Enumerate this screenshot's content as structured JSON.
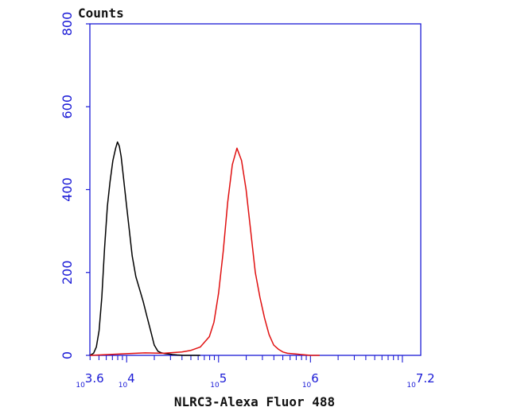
{
  "chart_data": {
    "type": "line",
    "title": "",
    "xlabel": "NLRC3-Alexa Fluor 488",
    "ylabel": "Counts",
    "x_scale": "log10",
    "xlim": [
      3.6,
      7.2
    ],
    "ylim": [
      0,
      800
    ],
    "x_tick_labels": [
      {
        "base": "10",
        "exp": "3.6",
        "value": 3.6
      },
      {
        "base": "10",
        "exp": "4",
        "value": 4
      },
      {
        "base": "10",
        "exp": "5",
        "value": 5
      },
      {
        "base": "10",
        "exp": "6",
        "value": 6
      },
      {
        "base": "10",
        "exp": "7.2",
        "value": 7.2
      }
    ],
    "y_ticks": [
      0,
      200,
      400,
      600,
      800
    ],
    "y_tick_labels": [
      "0",
      "200",
      "400",
      "600",
      "800"
    ],
    "grid": false,
    "legend": false,
    "colors": {
      "axis": "#1a1ad6",
      "label": "#111111"
    },
    "series": [
      {
        "color": "#000000",
        "x": [
          3.6,
          3.64,
          3.67,
          3.7,
          3.73,
          3.76,
          3.79,
          3.82,
          3.85,
          3.88,
          3.9,
          3.92,
          3.94,
          3.96,
          3.98,
          4.0,
          4.03,
          4.06,
          4.1,
          4.14,
          4.18,
          4.22,
          4.26,
          4.3,
          4.34,
          4.38,
          4.42,
          4.46,
          4.5,
          4.55,
          4.62,
          4.7,
          4.8
        ],
        "y": [
          0,
          5,
          20,
          60,
          140,
          260,
          360,
          420,
          470,
          500,
          515,
          505,
          480,
          440,
          400,
          360,
          300,
          240,
          190,
          160,
          130,
          95,
          60,
          25,
          10,
          6,
          4,
          3,
          2,
          1,
          0,
          0,
          0
        ]
      },
      {
        "color": "#e01010",
        "x": [
          3.6,
          3.8,
          4.0,
          4.2,
          4.4,
          4.6,
          4.7,
          4.8,
          4.9,
          4.95,
          5.0,
          5.05,
          5.1,
          5.15,
          5.2,
          5.25,
          5.3,
          5.35,
          5.4,
          5.45,
          5.5,
          5.55,
          5.6,
          5.65,
          5.7,
          5.75,
          5.8,
          5.85,
          5.9,
          5.95,
          6.0,
          6.1
        ],
        "y": [
          0,
          2,
          4,
          6,
          5,
          8,
          12,
          20,
          45,
          80,
          150,
          250,
          370,
          460,
          500,
          470,
          400,
          300,
          200,
          140,
          90,
          50,
          25,
          15,
          8,
          5,
          4,
          3,
          2,
          1,
          0,
          0
        ]
      }
    ]
  }
}
